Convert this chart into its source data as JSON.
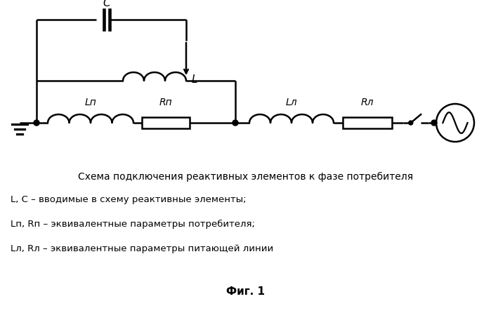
{
  "title": "Схема подключения реактивных элементов к фазе потребителя",
  "legend_lines": [
    "L, C – вводимые в схему реактивные элементы;",
    "Lп, Rп – эквивалентные параметры потребителя;",
    "Lл, Rл – эквивалентные параметры питающей линии"
  ],
  "fig_label": "Фиг. 1",
  "bg_color": "#ffffff",
  "line_color": "#000000",
  "figsize": [
    6.99,
    4.46
  ],
  "dpi": 100
}
